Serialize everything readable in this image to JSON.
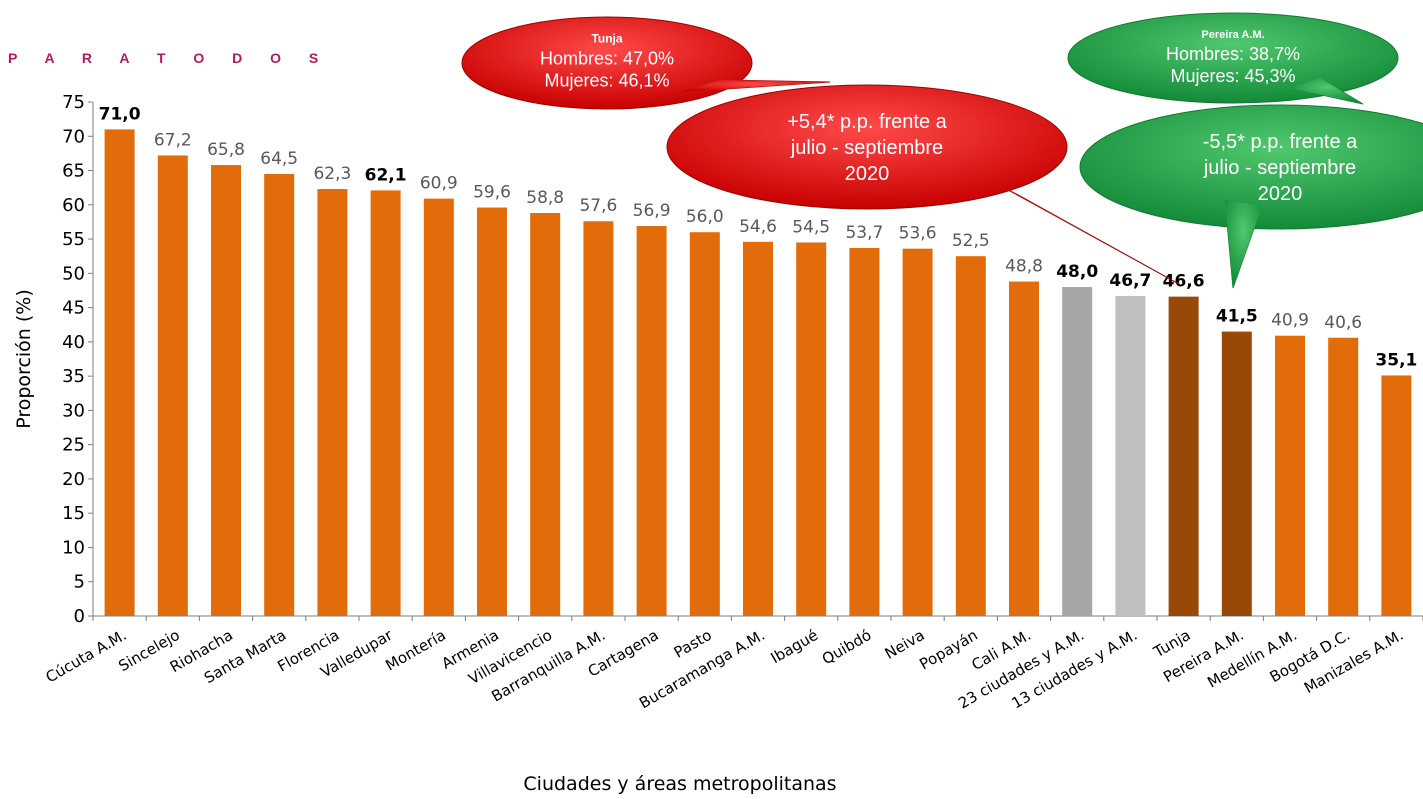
{
  "header": {
    "text": "P A R A   T O D O S"
  },
  "colors": {
    "bar_default": "#e36c0a",
    "bar_gray_dark": "#a6a6a6",
    "bar_gray_light": "#bfbfbf",
    "bar_brown": "#984807",
    "callout_red": "#e01010",
    "callout_green": "#1e9e46"
  },
  "chart_data": {
    "type": "bar",
    "xlabel": "Ciudades y áreas metropolitanas",
    "ylabel": "Proporción (%)",
    "ylim": [
      0,
      75
    ],
    "yticks": [
      0,
      5,
      10,
      15,
      20,
      25,
      30,
      35,
      40,
      45,
      50,
      55,
      60,
      65,
      70,
      75
    ],
    "grid": false,
    "categories": [
      "Cúcuta A.M.",
      "Sincelejo",
      "Riohacha",
      "Santa Marta",
      "Florencia",
      "Valledupar",
      "Montería",
      "Armenia",
      "Villavicencio",
      "Barranquilla A.M.",
      "Cartagena",
      "Pasto",
      "Bucaramanga A.M.",
      "Ibagué",
      "Quibdó",
      "Neiva",
      "Popayán",
      "Cali A.M.",
      "23 ciudades y A.M.",
      "13 ciudades y A.M.",
      "Tunja",
      "Pereira A.M.",
      "Medellín A.M.",
      "Bogotá  D.C.",
      "Manizales A.M."
    ],
    "values": [
      71.0,
      67.2,
      65.8,
      64.5,
      62.3,
      62.1,
      60.9,
      59.6,
      58.8,
      57.6,
      56.9,
      56.0,
      54.6,
      54.5,
      53.7,
      53.6,
      52.5,
      48.8,
      48.0,
      46.7,
      46.6,
      41.5,
      40.9,
      40.6,
      35.1
    ],
    "value_labels": [
      "71,0",
      "67,2",
      "65,8",
      "64,5",
      "62,3",
      "62,1",
      "60,9",
      "59,6",
      "58,8",
      "57,6",
      "56,9",
      "56,0",
      "54,6",
      "54,5",
      "53,7",
      "53,6",
      "52,5",
      "48,8",
      "48,0",
      "46,7",
      "46,6",
      "41,5",
      "40,9",
      "40,6",
      "35,1"
    ],
    "bold_labels": [
      0,
      5,
      18,
      19,
      20,
      21,
      24
    ],
    "bar_colors": {
      "18": "#a6a6a6",
      "19": "#bfbfbf",
      "20": "#984807",
      "21": "#984807"
    },
    "callouts": [
      {
        "id": "tunja-stats",
        "color": "#e01010",
        "title": "Tunja",
        "lines": [
          "Hombres: 47,0%",
          "Mujeres: 46,1%"
        ]
      },
      {
        "id": "tunja-change",
        "color": "#e01010",
        "lines": [
          "+5,4* p.p. frente a",
          "julio - septiembre",
          "2020"
        ]
      },
      {
        "id": "pereira-stats",
        "color": "#1e9e46",
        "title": "Pereira A.M.",
        "lines": [
          "Hombres: 38,7%",
          "Mujeres: 45,3%"
        ]
      },
      {
        "id": "pereira-change",
        "color": "#1e9e46",
        "lines": [
          "-5,5* p.p. frente a",
          "julio - septiembre",
          "2020"
        ]
      }
    ]
  }
}
